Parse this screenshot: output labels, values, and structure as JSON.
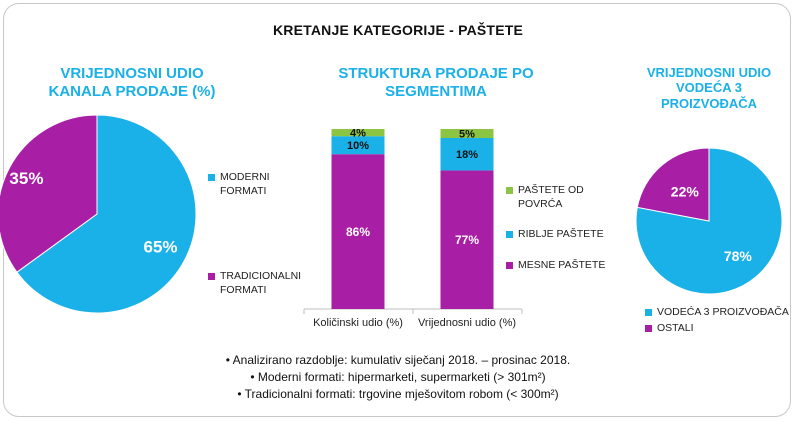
{
  "title": "KRETANJE KATEGORIJE - PAŠTETE",
  "colors": {
    "blue": "#1ab0e8",
    "purple": "#a81ea5",
    "green": "#8cc444"
  },
  "chart_data": [
    {
      "type": "pie",
      "title": "VRIJEDNOSNI UDIO KANALA PRODAJE (%)",
      "slices": [
        {
          "name": "MODERNI FORMATI",
          "value": 65,
          "label": "65%",
          "color": "#1ab0e8"
        },
        {
          "name": "TRADICIONALNI FORMATI",
          "value": 35,
          "label": "35%",
          "color": "#a81ea5"
        }
      ],
      "legend": [
        {
          "label": "MODERNI FORMATI",
          "color": "#1ab0e8"
        },
        {
          "label": "TRADICIONALNI FORMATI",
          "color": "#a81ea5"
        }
      ]
    },
    {
      "type": "bar",
      "stacked": true,
      "title": "STRUKTURA PRODAJE PO SEGMENTIMA",
      "categories": [
        "Količinski udio (%)",
        "Vrijednosni udio (%)"
      ],
      "series": [
        {
          "name": "MESNE PAŠTETE",
          "values": [
            86,
            77
          ],
          "labels": [
            "86%",
            "77%"
          ],
          "color": "#a81ea5"
        },
        {
          "name": "RIBLJE PAŠTETE",
          "values": [
            10,
            18
          ],
          "labels": [
            "10%",
            "18%"
          ],
          "color": "#1ab0e8"
        },
        {
          "name": "PAŠTETE OD POVRĆA",
          "values": [
            4,
            5
          ],
          "labels": [
            "4%",
            "5%"
          ],
          "color": "#8cc444"
        }
      ],
      "ylim": [
        0,
        100
      ],
      "legend": [
        {
          "label": "PAŠTETE OD POVRĆA",
          "color": "#8cc444"
        },
        {
          "label": "RIBLJE PAŠTETE",
          "color": "#1ab0e8"
        },
        {
          "label": "MESNE PAŠTETE",
          "color": "#a81ea5"
        }
      ]
    },
    {
      "type": "pie",
      "title": "VRIJEDNOSNI UDIO VODEĆA 3 PROIZVOĐAČA",
      "slices": [
        {
          "name": "VODEĆA 3 PROIZVOĐAČA",
          "value": 78,
          "label": "78%",
          "color": "#1ab0e8"
        },
        {
          "name": "OSTALI",
          "value": 22,
          "label": "22%",
          "color": "#a81ea5"
        }
      ],
      "legend": [
        {
          "label": "VODEĆA 3 PROIZVOĐAČA",
          "color": "#1ab0e8"
        },
        {
          "label": "OSTALI",
          "color": "#a81ea5"
        }
      ]
    }
  ],
  "notes": [
    "•  Analizirano razdoblje: kumulativ siječanj 2018. – prosinac 2018.",
    "•  Moderni formati: hipermarketi, supermarketi (> 301m²)",
    "•  Tradicionalni formati: trgovine mješovitom robom (< 300m²)"
  ]
}
